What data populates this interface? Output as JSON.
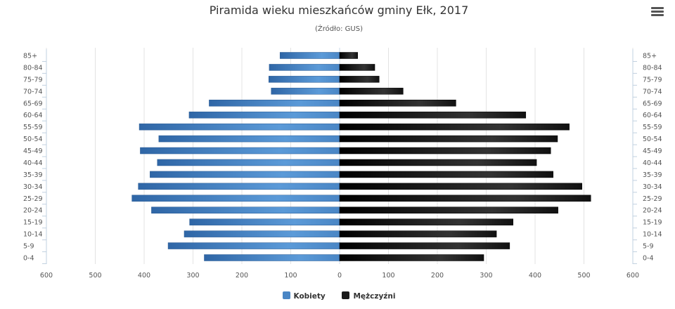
{
  "header": {
    "title": "Piramida wieku mieszkańców gminy Ełk, 2017",
    "subtitle": "(Źródło: GUS)",
    "menu_icon": "hamburger-menu-icon"
  },
  "chart_data": {
    "type": "bar",
    "orientation": "horizontal-population-pyramid",
    "title": "Piramida wieku mieszkańców gminy Ełk, 2017",
    "subtitle": "(Źródło: GUS)",
    "categories": [
      "85+",
      "80-84",
      "75-79",
      "70-74",
      "65-69",
      "60-64",
      "55-59",
      "50-54",
      "45-49",
      "40-44",
      "35-39",
      "30-34",
      "25-29",
      "20-24",
      "15-19",
      "10-14",
      "5-9",
      "0-4"
    ],
    "series": [
      {
        "name": "Kobiety",
        "color": "#4a86c5",
        "side": "left",
        "values": [
          122,
          144,
          145,
          140,
          267,
          308,
          410,
          370,
          408,
          373,
          388,
          412,
          425,
          385,
          307,
          318,
          351,
          277
        ]
      },
      {
        "name": "Mężczyźni",
        "color": "#1a1a1a",
        "side": "right",
        "values": [
          37,
          72,
          81,
          130,
          238,
          381,
          470,
          446,
          432,
          403,
          437,
          496,
          514,
          447,
          355,
          321,
          348,
          295
        ]
      }
    ],
    "xticks": [
      "600",
      "500",
      "400",
      "300",
      "200",
      "100",
      "0",
      "100",
      "200",
      "300",
      "400",
      "500",
      "600"
    ],
    "xlim": [
      -600,
      600
    ],
    "grid": true,
    "legend_position": "bottom-center"
  }
}
